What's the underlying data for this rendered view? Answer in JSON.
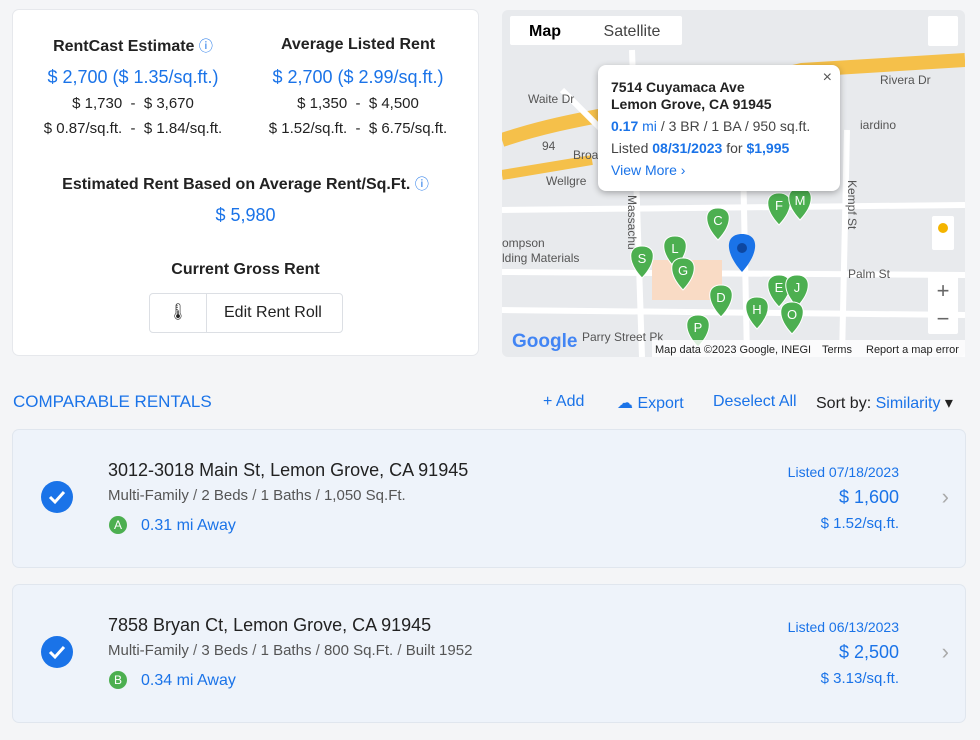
{
  "summary": {
    "rentcast_estimate": {
      "label": "RentCast Estimate",
      "value": "$ 2,700 ($ 1.35/sq.ft.)",
      "range": "$ 1,730  -  $ 3,670",
      "range_per_sqft": "$ 0.87/sq.ft.  -  $ 1.84/sq.ft."
    },
    "average_listed_rent": {
      "label": "Average Listed Rent",
      "value": "$ 2,700 ($ 2.99/sq.ft.)",
      "range": "$ 1,350  -  $ 4,500",
      "range_per_sqft": "$ 1.52/sq.ft.  -  $ 6.75/sq.ft."
    },
    "estimated_rent": {
      "label": "Estimated Rent Based on Average Rent/Sq.Ft.",
      "value": "$ 5,980"
    },
    "current_gross_rent": {
      "label": "Current Gross Rent",
      "button": "Edit Rent Roll"
    }
  },
  "map": {
    "tabs": [
      "Map",
      "Satellite"
    ],
    "popup": {
      "address_line1": "7514 Cuyamaca Ave",
      "address_line2": "Lemon Grove, CA 91945",
      "distance": "0.17",
      "distance_unit": "mi",
      "details": "/ 3 BR / 1 BA / 950 sq.ft.",
      "listed_label": "Listed",
      "listed_date": "08/31/2023",
      "for": "for",
      "price": "$1,995",
      "link": "View More ›"
    },
    "labels": [
      "Waite Dr",
      "Broa",
      "Wellgre",
      "ompson",
      "lding Materials",
      "Palm St",
      "Rivera Dr",
      "iardino",
      "Kempf St",
      "Massachu",
      "94",
      "Parry Street Pk"
    ],
    "markers": [
      "C",
      "F",
      "M",
      "L",
      "S",
      "G",
      "E",
      "J",
      "D",
      "H",
      "O",
      "P"
    ],
    "logo": "Google",
    "footer": [
      "Map data ©2023 Google, INEGI",
      "Terms",
      "Report a map error"
    ]
  },
  "comparables": {
    "title": "COMPARABLE RENTALS",
    "actions": [
      "Add",
      "Export",
      "Deselect All"
    ],
    "sort_label": "Sort by:",
    "sort_value": "Similarity",
    "items": [
      {
        "address": "3012-3018 Main St, Lemon Grove, CA 91945",
        "property_type": "Multi-Family",
        "details": [
          "2 Beds",
          "1 Baths",
          "1,050 Sq.Ft."
        ],
        "marker": "A",
        "distance": "0.31 mi Away",
        "listed_label": "Listed",
        "listed_date": "07/18/2023",
        "price": "$ 1,600",
        "price_per_sqft": "$ 1.52/sq.ft."
      },
      {
        "address": "7858 Bryan Ct, Lemon Grove, CA 91945",
        "property_type": "Multi-Family",
        "details": [
          "3 Beds",
          "1 Baths",
          "800 Sq.Ft.",
          "Built 1952"
        ],
        "marker": "B",
        "distance": "0.34 mi Away",
        "listed_label": "Listed",
        "listed_date": "06/13/2023",
        "price": "$ 2,500",
        "price_per_sqft": "$ 3.13/sq.ft."
      }
    ]
  }
}
